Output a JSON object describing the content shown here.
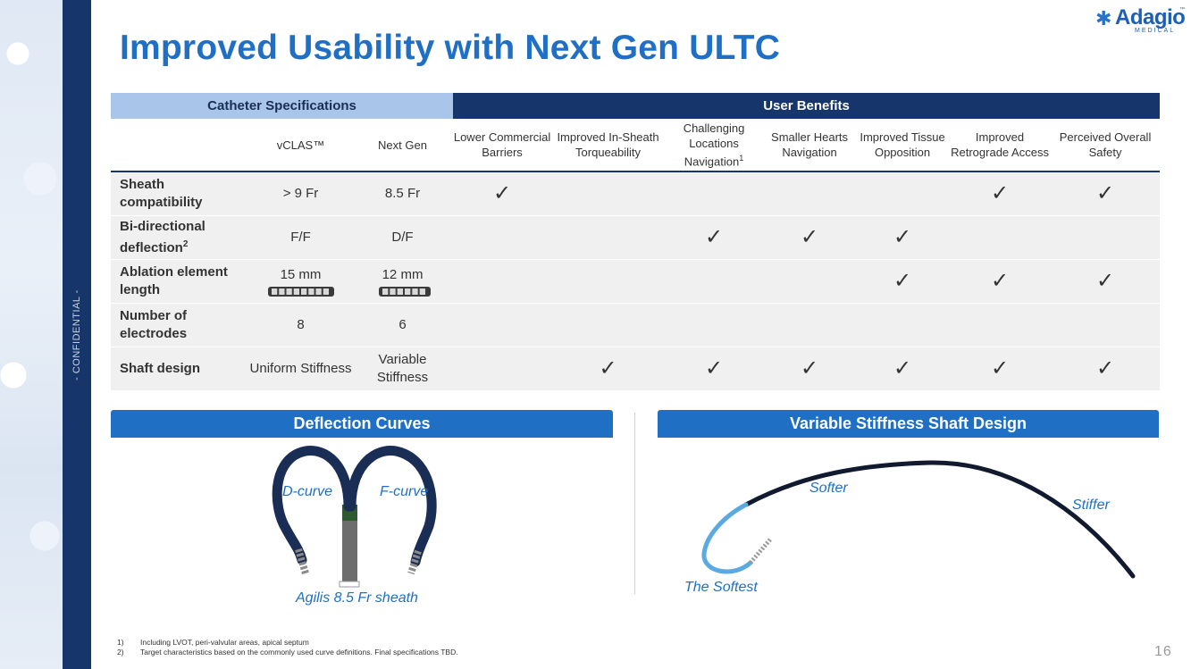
{
  "slide": {
    "title": "Improved Usability with Next Gen ULTC",
    "confidential": "- CONFIDENTIAL -",
    "page_number": "16"
  },
  "logo": {
    "word": "Adagio",
    "sub": "MEDICAL",
    "tm": "™"
  },
  "table": {
    "group_headers": {
      "specs": "Catheter Specifications",
      "benefits": "User Benefits"
    },
    "spec_columns": [
      "vCLAS™",
      "Next Gen"
    ],
    "benefit_columns": [
      {
        "text": "Lower Commercial Barriers",
        "sup": ""
      },
      {
        "text": "Improved In-Sheath Torqueability",
        "sup": ""
      },
      {
        "text": "Challenging Locations Navigation",
        "sup": "1"
      },
      {
        "text": "Smaller Hearts Navigation",
        "sup": ""
      },
      {
        "text": "Improved Tissue Opposition",
        "sup": ""
      },
      {
        "text": "Improved Retrograde Access",
        "sup": ""
      },
      {
        "text": "Perceived Overall Safety",
        "sup": ""
      }
    ],
    "rows": [
      {
        "label": "Sheath compatibility",
        "sup": "",
        "vclas": "> 9 Fr",
        "nextgen": "8.5 Fr",
        "checks": [
          true,
          false,
          false,
          false,
          false,
          true,
          true
        ]
      },
      {
        "label": "Bi-directional deflection",
        "sup": "2",
        "vclas": "F/F",
        "nextgen": "D/F",
        "checks": [
          false,
          false,
          true,
          true,
          true,
          false,
          false
        ]
      },
      {
        "label": "Ablation element length",
        "sup": "",
        "vclas": "15 mm",
        "nextgen": "12 mm",
        "checks": [
          false,
          false,
          false,
          false,
          true,
          true,
          true
        ]
      },
      {
        "label": "Number of electrodes",
        "sup": "",
        "vclas": "8",
        "nextgen": "6",
        "checks": [
          false,
          false,
          false,
          false,
          false,
          false,
          false
        ]
      },
      {
        "label": "Shaft design",
        "sup": "",
        "vclas": "Uniform Stiffness",
        "nextgen": "Variable Stiffness",
        "checks": [
          false,
          true,
          true,
          true,
          true,
          true,
          true
        ]
      }
    ],
    "check_glyph": "✓"
  },
  "deflection": {
    "header": "Deflection Curves",
    "labels": {
      "d_curve": "D-curve",
      "f_curve": "F-curve",
      "sheath": "Agilis 8.5 Fr sheath"
    }
  },
  "stiffness": {
    "header": "Variable Stiffness Shaft Design",
    "labels": {
      "softer": "Softer",
      "stiffer": "Stiffer",
      "softest": "The Softest"
    }
  },
  "footnotes": [
    {
      "num": "1)",
      "text": "Including LVOT, peri-valvular areas, apical septum"
    },
    {
      "num": "2)",
      "text": "Target characteristics based on the commonly used curve definitions. Final specifications TBD."
    }
  ],
  "colors": {
    "navy": "#16356b",
    "blue": "#1f6fc4",
    "light_blue": "#a9c6ea",
    "catheter_light": "#5aa9e0"
  }
}
